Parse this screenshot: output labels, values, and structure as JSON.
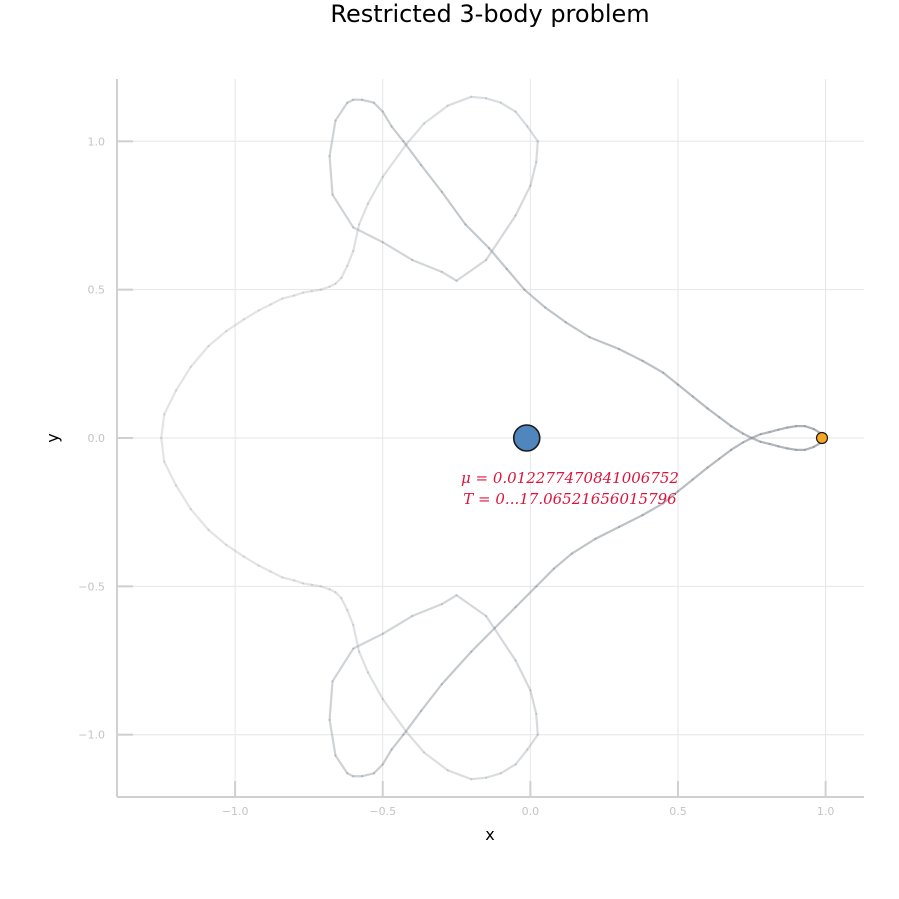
{
  "chart_data": {
    "type": "line",
    "title": "Restricted 3-body problem",
    "xlabel": "x",
    "ylabel": "y",
    "xlim": [
      -1.4,
      1.13
    ],
    "ylim": [
      -1.21,
      1.21
    ],
    "xticks": [
      -1.0,
      -0.5,
      0.0,
      0.5,
      1.0
    ],
    "xtick_labels": [
      "−1.0",
      "−0.5",
      "0.0",
      "0.5",
      "1.0"
    ],
    "yticks": [
      -1.0,
      -0.5,
      0.0,
      0.5,
      1.0
    ],
    "ytick_labels": [
      "−1.0",
      "−0.5",
      "0.0",
      "0.5",
      "1.0"
    ],
    "grid": true,
    "legend": "none",
    "colors": {
      "orbit": "#8c959c",
      "body1": "#4f86bd",
      "body2": "#f5a623",
      "annotation": "#dc143c",
      "axis": "#d0d0d0",
      "grid": "#e6e6e6"
    },
    "bodies": [
      {
        "x": -0.012277470841006752,
        "y": 0.0,
        "size": "large"
      },
      {
        "x": 0.9877225291589932,
        "y": 0.0,
        "size": "small"
      }
    ],
    "annotation": {
      "x": 0.15,
      "y": -0.15,
      "line1": "μ = 0.012277470841006752",
      "line2": "T = 0...17.06521656015796"
    },
    "series": [
      {
        "x": [
          0.994,
          0.985,
          0.96,
          0.93,
          0.9,
          0.87,
          0.84,
          0.81,
          0.78,
          0.75,
          0.72,
          0.68,
          0.64,
          0.6,
          0.55,
          0.5,
          0.45,
          0.38,
          0.3,
          0.22,
          0.14,
          0.08,
          0.02,
          -0.05,
          -0.12,
          -0.2,
          -0.3,
          -0.37,
          -0.43,
          -0.47,
          -0.5,
          -0.53,
          -0.57,
          -0.6,
          -0.62,
          -0.66,
          -0.68,
          -0.67,
          -0.6,
          -0.5,
          -0.4,
          -0.3,
          -0.25,
          -0.15,
          -0.05,
          0.0,
          0.02,
          0.025,
          -0.01,
          -0.05,
          -0.1,
          -0.15,
          -0.2,
          -0.28,
          -0.36,
          -0.42,
          -0.5,
          -0.55,
          -0.58,
          -0.6,
          -0.62,
          -0.64,
          -0.66,
          -0.68,
          -0.71,
          -0.74,
          -0.77,
          -0.8,
          -0.84,
          -0.88,
          -0.92,
          -0.97,
          -1.03,
          -1.09,
          -1.15,
          -1.2,
          -1.24,
          -1.25,
          -1.24,
          -1.2,
          -1.15,
          -1.09,
          -1.03,
          -0.97,
          -0.92,
          -0.88,
          -0.84,
          -0.8,
          -0.77,
          -0.74,
          -0.71,
          -0.68,
          -0.66,
          -0.64,
          -0.62,
          -0.6,
          -0.58,
          -0.55,
          -0.5,
          -0.42,
          -0.36,
          -0.28,
          -0.2,
          -0.15,
          -0.1,
          -0.05,
          -0.01,
          0.025,
          0.02,
          0.0,
          -0.05,
          -0.15,
          -0.25,
          -0.3,
          -0.4,
          -0.5,
          -0.6,
          -0.67,
          -0.68,
          -0.66,
          -0.62,
          -0.6,
          -0.57,
          -0.53,
          -0.5,
          -0.47,
          -0.43,
          -0.37,
          -0.3,
          -0.22,
          -0.14,
          -0.08,
          -0.02,
          0.05,
          0.12,
          0.2,
          0.3,
          0.38,
          0.45,
          0.5,
          0.55,
          0.6,
          0.64,
          0.68,
          0.72,
          0.75,
          0.78,
          0.81,
          0.84,
          0.87,
          0.9,
          0.93,
          0.96,
          0.985,
          0.994
        ],
        "y": [
          0.0,
          0.015,
          0.03,
          0.04,
          0.04,
          0.035,
          0.028,
          0.02,
          0.013,
          0.0,
          -0.015,
          -0.04,
          -0.07,
          -0.1,
          -0.14,
          -0.18,
          -0.22,
          -0.26,
          -0.3,
          -0.34,
          -0.39,
          -0.44,
          -0.5,
          -0.57,
          -0.64,
          -0.72,
          -0.83,
          -0.92,
          -1.0,
          -1.05,
          -1.1,
          -1.13,
          -1.14,
          -1.14,
          -1.13,
          -1.07,
          -0.95,
          -0.82,
          -0.71,
          -0.66,
          -0.6,
          -0.56,
          -0.53,
          -0.6,
          -0.75,
          -0.85,
          -0.93,
          -1.0,
          -1.05,
          -1.1,
          -1.13,
          -1.145,
          -1.15,
          -1.12,
          -1.06,
          -0.99,
          -0.88,
          -0.79,
          -0.72,
          -0.63,
          -0.58,
          -0.54,
          -0.52,
          -0.51,
          -0.5,
          -0.495,
          -0.49,
          -0.48,
          -0.47,
          -0.45,
          -0.43,
          -0.4,
          -0.36,
          -0.31,
          -0.24,
          -0.16,
          -0.08,
          0.0,
          0.08,
          0.16,
          0.24,
          0.31,
          0.36,
          0.4,
          0.43,
          0.45,
          0.47,
          0.48,
          0.49,
          0.495,
          0.5,
          0.51,
          0.52,
          0.54,
          0.58,
          0.63,
          0.72,
          0.79,
          0.88,
          0.99,
          1.06,
          1.12,
          1.15,
          1.145,
          1.13,
          1.1,
          1.05,
          1.0,
          0.93,
          0.85,
          0.75,
          0.6,
          0.53,
          0.56,
          0.6,
          0.66,
          0.71,
          0.82,
          0.95,
          1.07,
          1.13,
          1.14,
          1.14,
          1.13,
          1.1,
          1.05,
          1.0,
          0.92,
          0.83,
          0.72,
          0.64,
          0.57,
          0.5,
          0.44,
          0.39,
          0.34,
          0.3,
          0.26,
          0.22,
          0.18,
          0.14,
          0.1,
          0.07,
          0.04,
          0.015,
          0.0,
          -0.013,
          -0.02,
          -0.028,
          -0.035,
          -0.04,
          -0.04,
          -0.03,
          -0.015,
          0.0
        ]
      }
    ]
  }
}
